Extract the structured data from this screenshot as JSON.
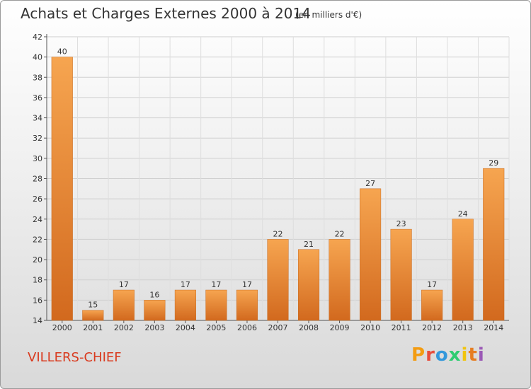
{
  "header": {
    "title": "Achats et Charges Externes 2000 à 2014",
    "subtitle": "(en milliers d'€)"
  },
  "footer": {
    "place": "VILLERS-CHIEF",
    "logo": {
      "letters": [
        "P",
        "r",
        "o",
        "x",
        "i",
        "t",
        "i"
      ],
      "colors": [
        "#f39c12",
        "#e74c3c",
        "#3498db",
        "#2ecc71",
        "#f1c40f",
        "#e67e22",
        "#9b59b6"
      ]
    }
  },
  "chart_data": {
    "type": "bar",
    "title": "Achats et Charges Externes 2000 à 2014",
    "categories": [
      "2000",
      "2001",
      "2002",
      "2003",
      "2004",
      "2005",
      "2006",
      "2007",
      "2008",
      "2009",
      "2010",
      "2011",
      "2012",
      "2013",
      "2014"
    ],
    "values": [
      40,
      15,
      17,
      16,
      17,
      17,
      17,
      22,
      21,
      22,
      27,
      23,
      17,
      24,
      29
    ],
    "ylim": [
      14,
      42
    ],
    "yticks": [
      14,
      16,
      18,
      20,
      22,
      24,
      26,
      28,
      30,
      32,
      34,
      36,
      38,
      40,
      42
    ],
    "grid": true,
    "bar_color_top": "#f6a550",
    "bar_color_bottom": "#d2691e"
  }
}
